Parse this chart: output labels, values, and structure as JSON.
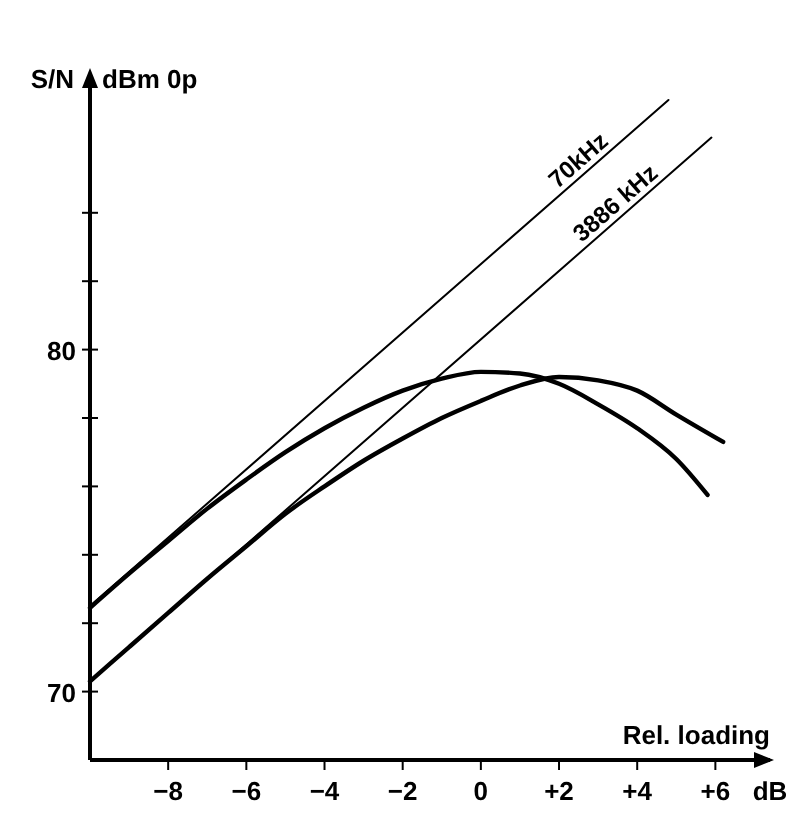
{
  "chart_data": {
    "type": "line",
    "ylabel": "S/N",
    "xlabel": "Rel. loading",
    "annotations": [
      "dBm 0p",
      "dB"
    ],
    "xlim": [
      -10,
      7.5
    ],
    "ylim": [
      68,
      88
    ],
    "xticks": [
      {
        "value": -8,
        "label": "−8"
      },
      {
        "value": -6,
        "label": "−6"
      },
      {
        "value": -4,
        "label": "−4"
      },
      {
        "value": -2,
        "label": "−2"
      },
      0,
      {
        "value": 2,
        "label": "+2"
      },
      {
        "value": 4,
        "label": "+4"
      },
      {
        "value": 6,
        "label": "+6"
      }
    ],
    "yticks": [
      70,
      {
        "value": 72,
        "label": null
      },
      {
        "value": 74,
        "label": null
      },
      {
        "value": 76,
        "label": null
      },
      {
        "value": 78,
        "label": null
      },
      80,
      {
        "value": 82,
        "label": null
      },
      {
        "value": 84,
        "label": null
      }
    ],
    "grid": false,
    "marker": "none",
    "line_style": "solid",
    "series": [
      {
        "name": "70kHz",
        "color": "#000000",
        "x": [
          -10,
          4.8
        ],
        "values": [
          72.5,
          87.3
        ]
      },
      {
        "name": "3886 kHz",
        "color": "#000000",
        "x": [
          -10,
          5.9
        ],
        "values": [
          70.3,
          86.2
        ]
      },
      {
        "color": "#000000",
        "x": [
          -10,
          -9,
          -8,
          -7,
          -6,
          -5,
          -4,
          -3,
          -2,
          -1,
          0,
          1,
          2,
          3,
          4,
          5,
          5.8
        ],
        "values": [
          72.45,
          73.45,
          74.4,
          75.35,
          76.2,
          77.0,
          77.7,
          78.3,
          78.8,
          79.15,
          79.35,
          79.3,
          79.0,
          78.4,
          77.7,
          76.8,
          75.75
        ]
      },
      {
        "color": "#000000",
        "x": [
          -10,
          -9,
          -8,
          -7,
          -6,
          -5,
          -4,
          -3,
          -2,
          -1,
          0,
          1,
          2,
          3,
          4,
          5,
          6.2
        ],
        "values": [
          70.3,
          71.3,
          72.3,
          73.3,
          74.25,
          75.2,
          76.0,
          76.75,
          77.4,
          78.0,
          78.5,
          78.95,
          79.2,
          79.1,
          78.8,
          78.1,
          77.3
        ]
      }
    ]
  }
}
